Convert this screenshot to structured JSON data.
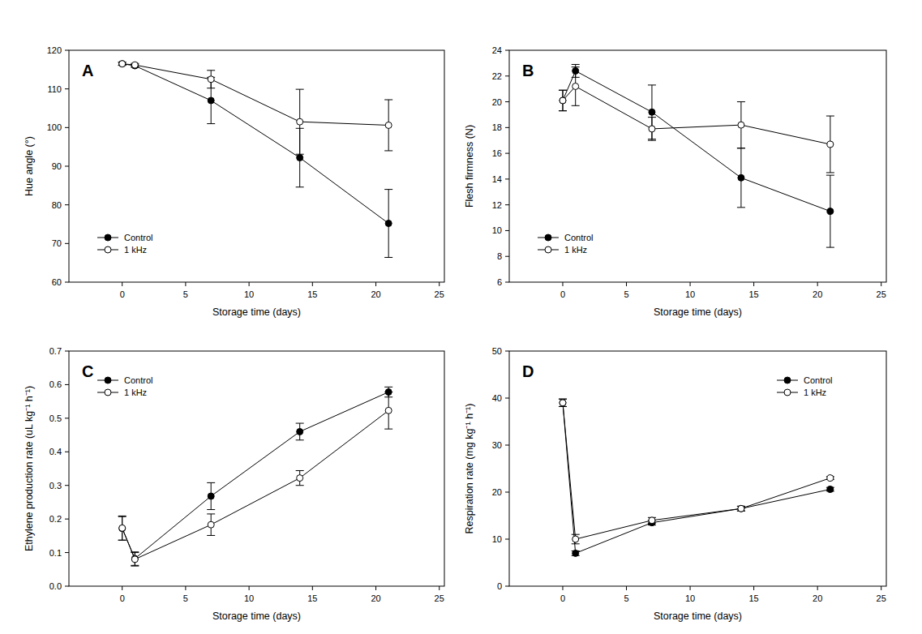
{
  "chart_data": [
    {
      "type": "line",
      "title": "A",
      "xlabel": "Storage time (days)",
      "ylabel": "Hue angle (°)",
      "x": [
        0,
        1,
        7,
        14,
        21
      ],
      "xlim": [
        -4.2,
        25.4
      ],
      "xticks": [
        0,
        5,
        10,
        15,
        20,
        25
      ],
      "ylim": [
        60,
        120
      ],
      "yticks": [
        60,
        70,
        80,
        90,
        100,
        110,
        120
      ],
      "grid": false,
      "legend": "lower-left",
      "series": [
        {
          "name": "Control",
          "color": "#000000",
          "marker": "filled-circle",
          "line_style": "solid",
          "values": [
            116.5,
            116,
            107,
            92.2,
            75.2
          ],
          "errors": [
            0.4,
            0.4,
            6,
            7.6,
            8.8
          ]
        },
        {
          "name": "1 kHz",
          "color": "#000000",
          "marker": "open-circle",
          "line_style": "solid",
          "values": [
            116.5,
            116.2,
            112.5,
            101.5,
            100.6
          ],
          "errors": [
            0.4,
            0.4,
            2.3,
            8.4,
            6.6
          ]
        }
      ]
    },
    {
      "type": "line",
      "title": "B",
      "xlabel": "Storage time (days)",
      "ylabel": "Flesh firmness (N)",
      "x": [
        0,
        1,
        7,
        14,
        21
      ],
      "xlim": [
        -4.2,
        25.4
      ],
      "xticks": [
        0,
        5,
        10,
        15,
        20,
        25
      ],
      "ylim": [
        6,
        24
      ],
      "yticks": [
        6,
        8,
        10,
        12,
        14,
        16,
        18,
        20,
        22,
        24
      ],
      "grid": false,
      "legend": "lower-left",
      "series": [
        {
          "name": "Control",
          "color": "#000000",
          "marker": "filled-circle",
          "line_style": "solid",
          "values": [
            20.1,
            22.4,
            19.2,
            14.1,
            11.5
          ],
          "errors": [
            0.8,
            0.5,
            2.1,
            2.3,
            2.8
          ]
        },
        {
          "name": "1 kHz",
          "color": "#000000",
          "marker": "open-circle",
          "line_style": "solid",
          "values": [
            20.1,
            21.2,
            17.9,
            18.2,
            16.7
          ],
          "errors": [
            0.8,
            1.5,
            0.9,
            1.8,
            2.2
          ]
        }
      ]
    },
    {
      "type": "line",
      "title": "C",
      "xlabel": "Storage time (days)",
      "ylabel": "Ethylene production rate (uL kg⁻¹ h⁻¹)",
      "x": [
        0,
        1,
        7,
        14,
        21
      ],
      "xlim": [
        -4.2,
        25.4
      ],
      "xticks": [
        0,
        5,
        10,
        15,
        20,
        25
      ],
      "ylim": [
        0,
        0.7
      ],
      "yticks": [
        {
          "value": 0,
          "label": "0.0"
        },
        0.1,
        0.2,
        0.3,
        0.4,
        0.5,
        0.6,
        0.7
      ],
      "grid": false,
      "legend": "upper-left",
      "series": [
        {
          "name": "Control",
          "color": "#000000",
          "marker": "filled-circle",
          "line_style": "solid",
          "values": [
            0.172,
            0.082,
            0.268,
            0.46,
            0.578
          ],
          "errors": [
            0.035,
            0.02,
            0.04,
            0.025,
            0.015
          ]
        },
        {
          "name": "1 kHz",
          "color": "#000000",
          "marker": "open-circle",
          "line_style": "solid",
          "values": [
            0.173,
            0.08,
            0.183,
            0.322,
            0.523
          ],
          "errors": [
            0.036,
            0.02,
            0.032,
            0.022,
            0.055
          ]
        }
      ]
    },
    {
      "type": "line",
      "title": "D",
      "xlabel": "Storage time (days)",
      "ylabel": "Respiration rate (mg kg⁻¹ h⁻¹)",
      "x": [
        0,
        1,
        7,
        14,
        21
      ],
      "xlim": [
        -4.2,
        25.4
      ],
      "xticks": [
        0,
        5,
        10,
        15,
        20,
        25
      ],
      "ylim": [
        0,
        50
      ],
      "yticks": [
        0,
        10,
        20,
        30,
        40,
        50
      ],
      "grid": false,
      "legend": "upper-right",
      "series": [
        {
          "name": "Control",
          "color": "#000000",
          "marker": "filled-circle",
          "line_style": "solid",
          "values": [
            39,
            7,
            13.5,
            16.5,
            20.6
          ],
          "errors": [
            0.8,
            0.5,
            0.5,
            0.5,
            0.4
          ]
        },
        {
          "name": "1 kHz",
          "color": "#000000",
          "marker": "open-circle",
          "line_style": "solid",
          "values": [
            39,
            10,
            14,
            16.5,
            23
          ],
          "errors": [
            0.8,
            1,
            0.6,
            0.5,
            0.3
          ]
        }
      ]
    }
  ]
}
